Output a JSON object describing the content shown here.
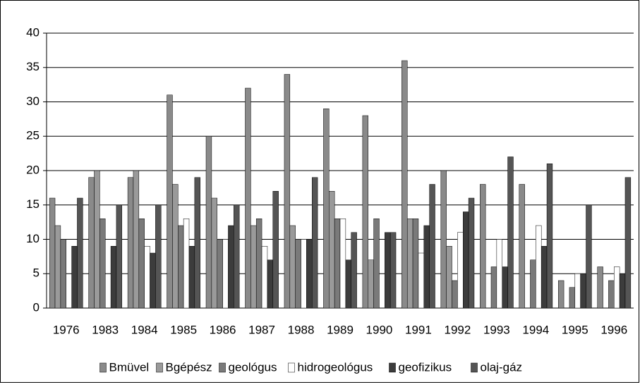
{
  "chart_data": {
    "type": "bar",
    "categories": [
      "1976",
      "1983",
      "1984",
      "1985",
      "1986",
      "1987",
      "1988",
      "1989",
      "1990",
      "1991",
      "1992",
      "1993",
      "1994",
      "1995",
      "1996"
    ],
    "series": [
      {
        "name": "Bmüvel",
        "color": "#8a8a8a",
        "values": [
          16,
          19,
          19,
          31,
          25,
          32,
          34,
          29,
          28,
          36,
          20,
          18,
          18,
          4,
          6
        ]
      },
      {
        "name": "Bgépész",
        "color": "#9a9a9a",
        "values": [
          12,
          20,
          20,
          18,
          16,
          12,
          12,
          17,
          7,
          13,
          9,
          0,
          0,
          0,
          0
        ]
      },
      {
        "name": "geológus",
        "color": "#7a7a7a",
        "values": [
          10,
          13,
          13,
          12,
          10,
          13,
          10,
          13,
          13,
          13,
          4,
          6,
          7,
          3,
          4
        ]
      },
      {
        "name": "hidrogeológus",
        "color": "#ffffff",
        "values": [
          0,
          0,
          9,
          13,
          10,
          9,
          10,
          13,
          0,
          8,
          11,
          10,
          12,
          5,
          6
        ]
      },
      {
        "name": "geofizikus",
        "color": "#3c3c3c",
        "values": [
          9,
          9,
          8,
          9,
          12,
          7,
          10,
          7,
          11,
          12,
          14,
          6,
          9,
          5,
          5
        ]
      },
      {
        "name": "olaj-gáz",
        "color": "#555555",
        "values": [
          16,
          15,
          15,
          19,
          15,
          17,
          19,
          11,
          11,
          18,
          16,
          22,
          21,
          15,
          19
        ]
      }
    ],
    "ylim": [
      0,
      40
    ],
    "yticks": [
      0,
      5,
      10,
      15,
      20,
      25,
      30,
      35,
      40
    ],
    "grid": true,
    "legend": "bottom"
  }
}
